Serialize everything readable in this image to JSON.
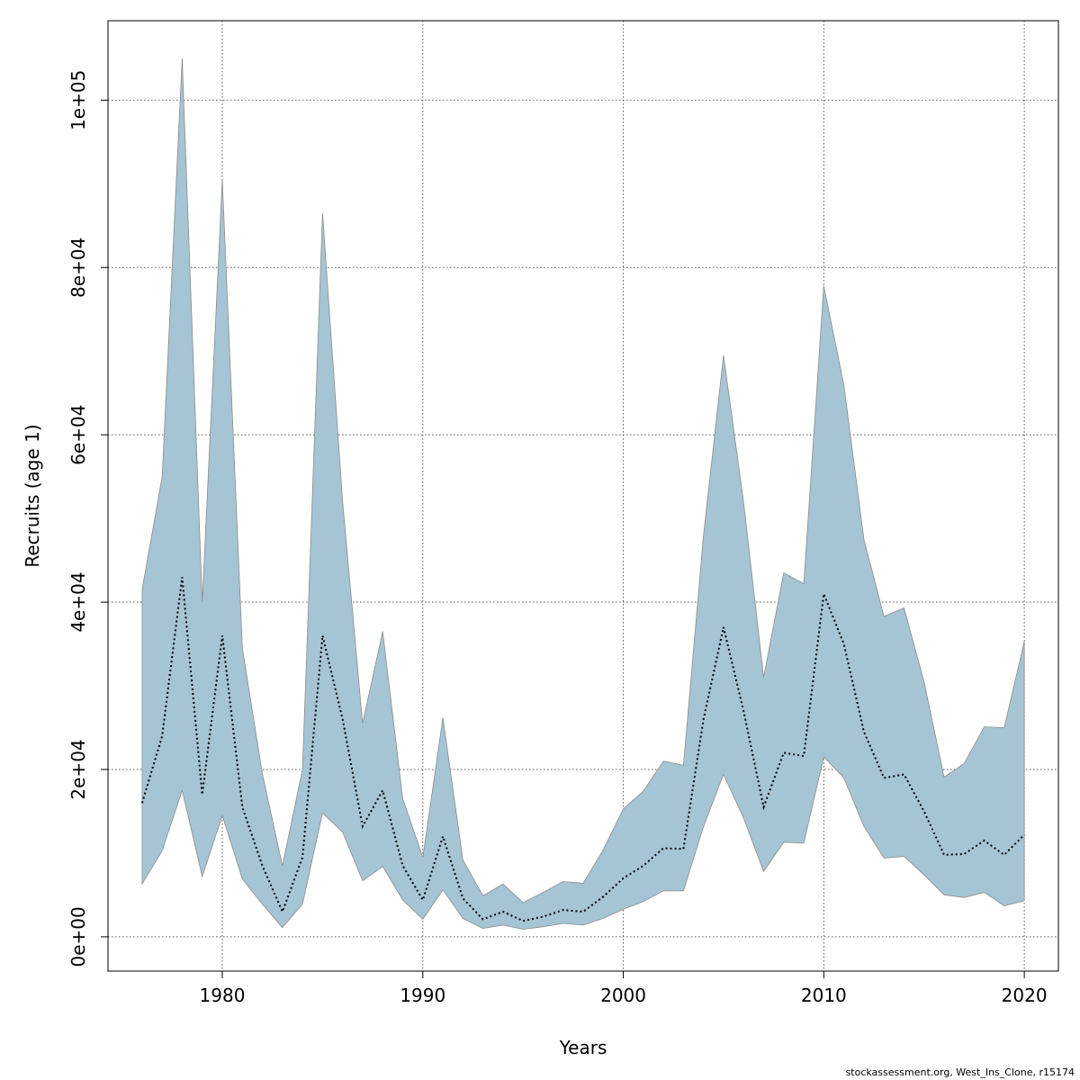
{
  "chart_data": {
    "type": "area",
    "xlabel": "Years",
    "ylabel": "Recruits (age 1)",
    "xlim": [
      1974.3,
      2021.7
    ],
    "ylim": [
      -4100,
      109500
    ],
    "x_ticks": [
      1980,
      1990,
      2000,
      2010,
      2020
    ],
    "x_tick_labels": [
      "1980",
      "1990",
      "2000",
      "2010",
      "2020"
    ],
    "y_ticks": [
      0,
      20000,
      40000,
      60000,
      80000,
      100000
    ],
    "y_tick_labels": [
      "0e+00",
      "2e+04",
      "4e+04",
      "6e+04",
      "8e+04",
      "1e+05"
    ],
    "grid": true,
    "colors": {
      "band_fill": "#a5c4d4",
      "band_edge": "#8c8c8c",
      "line": "#000000",
      "grid": "#555555"
    },
    "x": [
      1976,
      1977,
      1978,
      1979,
      1980,
      1981,
      1982,
      1983,
      1984,
      1985,
      1986,
      1987,
      1988,
      1989,
      1990,
      1991,
      1992,
      1993,
      1994,
      1995,
      1996,
      1997,
      1998,
      1999,
      2000,
      2001,
      2002,
      2003,
      2004,
      2005,
      2006,
      2007,
      2008,
      2009,
      2010,
      2011,
      2012,
      2013,
      2014,
      2015,
      2016,
      2017,
      2018,
      2019,
      2020
    ],
    "series": [
      {
        "role": "median",
        "values": [
          16000,
          24000,
          43000,
          17000,
          36000,
          15500,
          8500,
          3000,
          9500,
          36000,
          26000,
          13200,
          17500,
          8500,
          4400,
          12000,
          4600,
          2100,
          3000,
          1900,
          2400,
          3200,
          3000,
          4800,
          7000,
          8500,
          10600,
          10500,
          26000,
          37000,
          27000,
          15500,
          22000,
          21600,
          41000,
          35000,
          24500,
          19000,
          19400,
          15000,
          9800,
          9900,
          11500,
          9800,
          12200
        ]
      },
      {
        "role": "upper",
        "values": [
          41500,
          55000,
          105000,
          40000,
          90500,
          34500,
          19500,
          8500,
          20000,
          86500,
          52000,
          25500,
          36500,
          16500,
          9500,
          26200,
          9200,
          4900,
          6300,
          4100,
          5300,
          6600,
          6400,
          10400,
          15300,
          17400,
          21000,
          20500,
          48000,
          69500,
          52000,
          31000,
          43500,
          42200,
          77800,
          66000,
          47500,
          38300,
          39300,
          30500,
          19100,
          20700,
          25100,
          25000,
          35300
        ]
      },
      {
        "role": "lower",
        "values": [
          6300,
          10300,
          17500,
          7200,
          14500,
          6900,
          3900,
          1100,
          3900,
          14800,
          12500,
          6700,
          8400,
          4400,
          2100,
          5600,
          2200,
          1000,
          1400,
          900,
          1200,
          1600,
          1400,
          2200,
          3300,
          4200,
          5500,
          5500,
          13200,
          19400,
          14200,
          7800,
          11300,
          11200,
          21500,
          19000,
          13200,
          9400,
          9600,
          7400,
          5000,
          4700,
          5300,
          3700,
          4300
        ]
      }
    ]
  },
  "footer": {
    "caption": "stockassessment.org, West_Ins_Clone, r15174"
  }
}
